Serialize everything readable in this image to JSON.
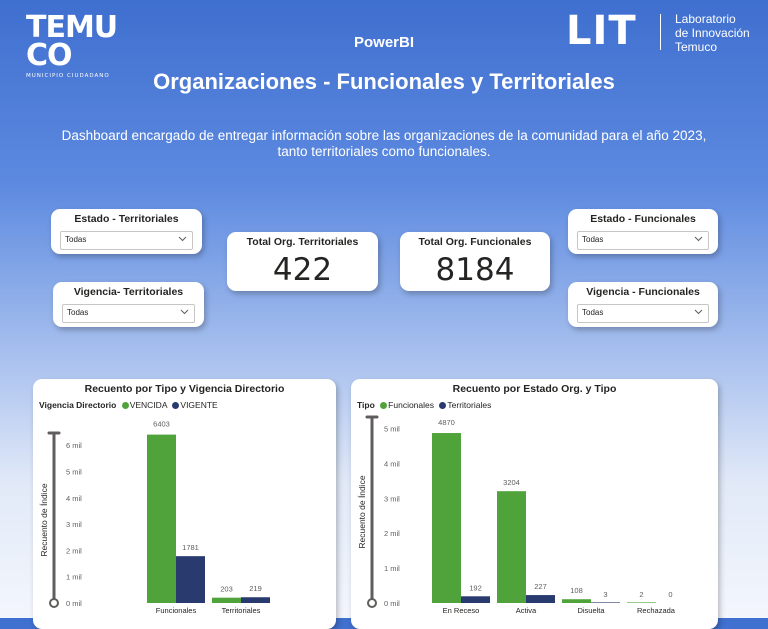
{
  "header": {
    "logo_temuco": {
      "line1": "TEMU",
      "line2": "CO",
      "tagline": "MUNICIPIO CIUDADANO"
    },
    "powerbi": "PowerBI",
    "lit": {
      "word": "LIT",
      "line1": "Laboratorio",
      "line2": "de Innovación",
      "line3": "Temuco"
    },
    "title": "Organizaciones - Funcionales y Territoriales",
    "description": "Dashboard encargado de entregar información sobre las organizaciones de la comunidad para el año 2023, tanto territoriales como funcionales."
  },
  "slicers": {
    "estado_territoriales": {
      "title": "Estado - Territoriales",
      "value": "Todas"
    },
    "vigencia_territoriales": {
      "title": "Vigencia- Territoriales",
      "value": "Todas"
    },
    "estado_funcionales": {
      "title": "Estado - Funcionales",
      "value": "Todas"
    },
    "vigencia_funcionales": {
      "title": "Vigencia - Funcionales",
      "value": "Todas"
    }
  },
  "kpis": {
    "territoriales": {
      "label": "Total Org. Territoriales",
      "value": "422"
    },
    "funcionales": {
      "label": "Total Org. Funcionales",
      "value": "8184"
    }
  },
  "colors": {
    "green": "#4fa33a",
    "navy": "#283a6e"
  },
  "chart_data": [
    {
      "type": "bar",
      "title": "Recuento por Tipo y Vigencia Directorio",
      "legend_title": "Vigencia Directorio",
      "ylabel": "Recuento de Índice",
      "xlabel": "",
      "categories": [
        "Funcionales",
        "Territoriales"
      ],
      "series": [
        {
          "name": "VENCIDA",
          "values": [
            6403,
            203
          ],
          "color": "#4fa33a"
        },
        {
          "name": "VIGENTE",
          "values": [
            1781,
            219
          ],
          "color": "#283a6e"
        }
      ],
      "yticks": [
        "0 mil",
        "1 mil",
        "2 mil",
        "3 mil",
        "4 mil",
        "5 mil",
        "6 mil"
      ],
      "ylim": [
        0,
        6500
      ],
      "grid": false,
      "legend_position": "top-left"
    },
    {
      "type": "bar",
      "title": "Recuento por Estado Org. y Tipo",
      "legend_title": "Tipo",
      "ylabel": "Recuento de Índice",
      "xlabel": "",
      "categories": [
        "En Receso",
        "Activa",
        "Disuelta",
        "Rechazada"
      ],
      "series": [
        {
          "name": "Funcionales",
          "values": [
            4870,
            3204,
            108,
            2
          ],
          "color": "#4fa33a"
        },
        {
          "name": "Territoriales",
          "values": [
            192,
            227,
            3,
            0
          ],
          "color": "#283a6e"
        }
      ],
      "yticks": [
        "0 mil",
        "1 mil",
        "2 mil",
        "3 mil",
        "4 mil",
        "5 mil"
      ],
      "ylim": [
        0,
        5000
      ],
      "grid": false,
      "legend_position": "top-left"
    }
  ]
}
